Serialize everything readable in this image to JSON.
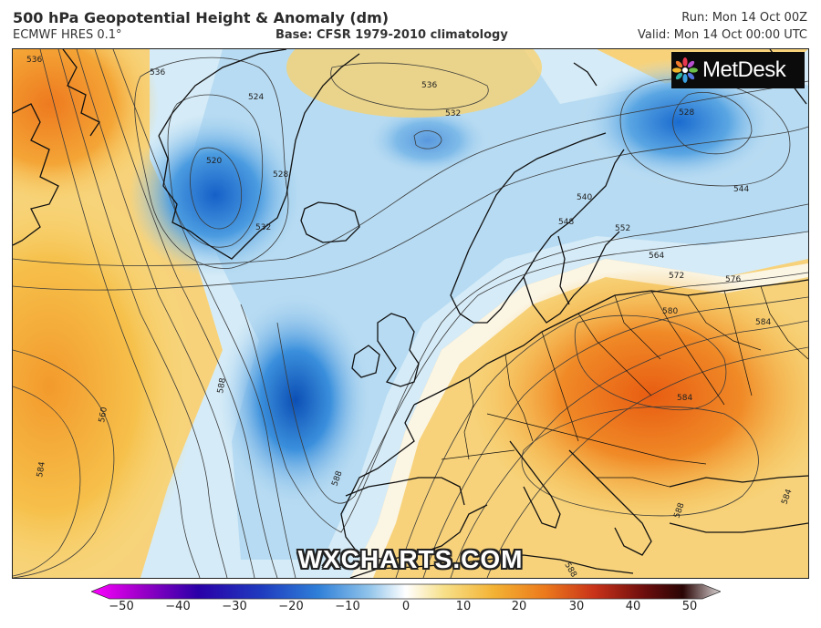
{
  "header": {
    "title": "500 hPa Geopotential Height & Anomaly (dm)",
    "model": "ECMWF HRES 0.1°",
    "base": "Base: CFSR 1979-2010 climatology",
    "run": "Run: Mon 14 Oct 00Z",
    "valid": "Valid: Mon 14 Oct 00:00 UTC"
  },
  "logo": {
    "text": "MetDesk",
    "icon": "metdesk-star-icon"
  },
  "watermark": "WXCHARTS.COM",
  "contour_labels": [
    "536",
    "536",
    "524",
    "520",
    "528",
    "532",
    "536",
    "532",
    "528",
    "540",
    "544",
    "548",
    "552",
    "564",
    "572",
    "576",
    "580",
    "584",
    "588",
    "560",
    "584",
    "588",
    "584",
    "588",
    "584",
    "588"
  ],
  "colorbar": {
    "ticks": [
      "−50",
      "−40",
      "−30",
      "−20",
      "−10",
      "0",
      "10",
      "20",
      "30",
      "40",
      "50"
    ],
    "stops": [
      "#ff00ff",
      "#9b00c8",
      "#2a00a8",
      "#1f3bbf",
      "#2f7fd8",
      "#8fc3ea",
      "#ffffff",
      "#f7e08a",
      "#f3b233",
      "#ec7a1c",
      "#c8321a",
      "#6b0d0d",
      "#2a0505",
      "#d9d4d4"
    ]
  },
  "colors": {
    "land_border": "#111111",
    "contour": "#3a3a3a",
    "low_anomaly": "#2a7fd4",
    "high_anomaly": "#ee7d1f"
  }
}
